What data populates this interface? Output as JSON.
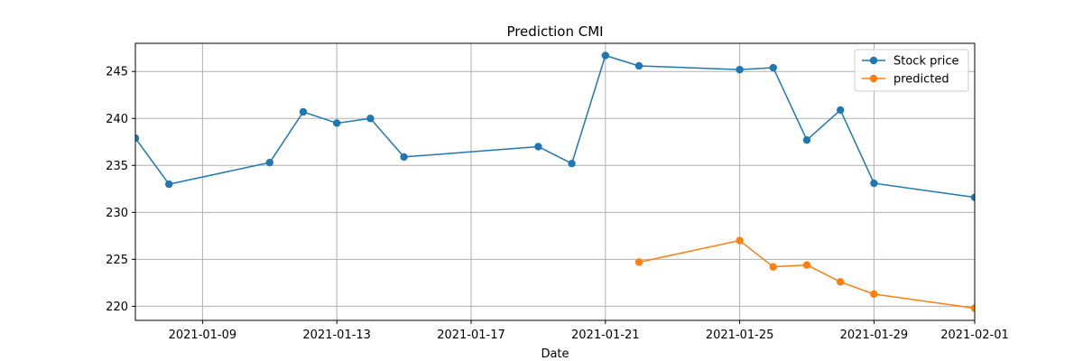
{
  "chart_data": {
    "type": "line",
    "title": "Prediction CMI",
    "xlabel": "Date",
    "ylabel": "",
    "xlim": [
      "2021-01-07",
      "2021-02-01"
    ],
    "ylim": [
      218.5,
      248
    ],
    "x_ticks": [
      "2021-01-09",
      "2021-01-13",
      "2021-01-17",
      "2021-01-21",
      "2021-01-25",
      "2021-01-29",
      "2021-02-01"
    ],
    "y_ticks": [
      220,
      225,
      230,
      235,
      240,
      245
    ],
    "grid": true,
    "legend_position": "top-right",
    "series": [
      {
        "name": "Stock price",
        "color": "#1f77b4",
        "marker": "circle",
        "x": [
          "2021-01-07",
          "2021-01-08",
          "2021-01-11",
          "2021-01-12",
          "2021-01-13",
          "2021-01-14",
          "2021-01-15",
          "2021-01-19",
          "2021-01-20",
          "2021-01-21",
          "2021-01-22",
          "2021-01-25",
          "2021-01-26",
          "2021-01-27",
          "2021-01-28",
          "2021-01-29",
          "2021-02-01"
        ],
        "values": [
          237.9,
          233.0,
          235.3,
          240.7,
          239.5,
          240.0,
          235.9,
          237.0,
          235.2,
          246.7,
          245.6,
          245.2,
          245.4,
          237.7,
          240.9,
          233.1,
          231.6
        ]
      },
      {
        "name": "predicted",
        "color": "#ff7f0e",
        "marker": "circle",
        "x": [
          "2021-01-22",
          "2021-01-25",
          "2021-01-26",
          "2021-01-27",
          "2021-01-28",
          "2021-01-29",
          "2021-02-01"
        ],
        "values": [
          224.7,
          227.0,
          224.2,
          224.4,
          222.6,
          221.3,
          219.8
        ]
      }
    ]
  }
}
